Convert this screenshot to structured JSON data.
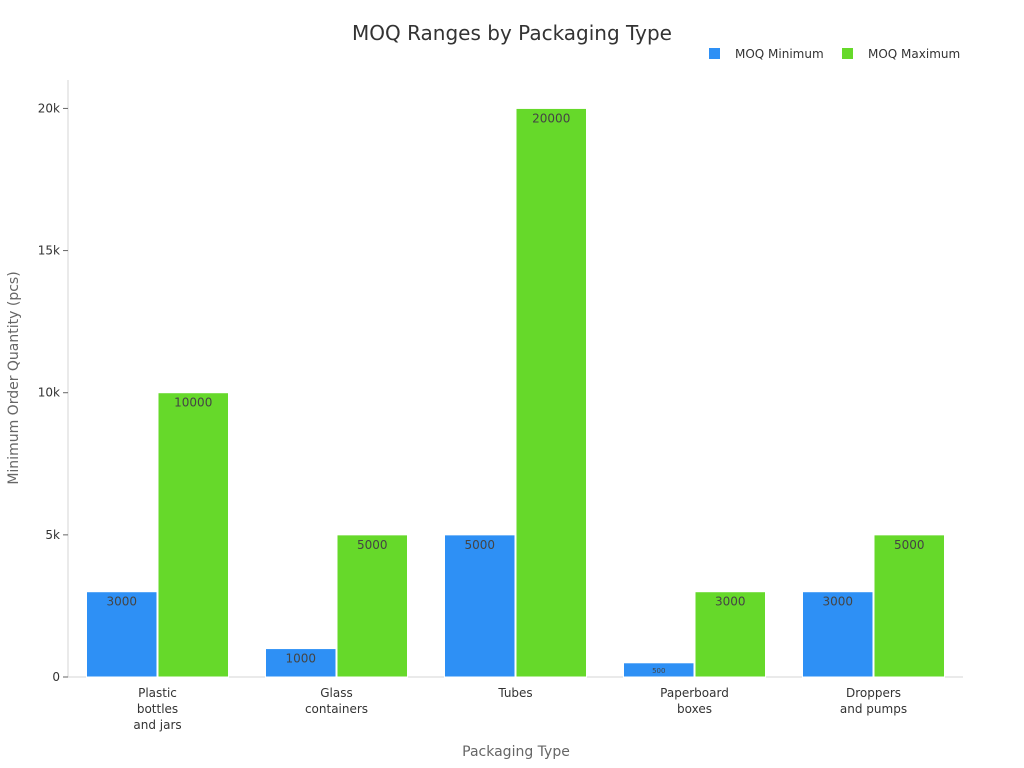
{
  "chart_data": {
    "type": "bar",
    "title": "MOQ Ranges by Packaging Type",
    "xlabel": "Packaging Type",
    "ylabel": "Minimum Order Quantity (pcs)",
    "categories": [
      [
        "Plastic",
        "bottles",
        "and jars"
      ],
      [
        "Glass",
        "containers"
      ],
      [
        "Tubes"
      ],
      [
        "Paperboard",
        "boxes"
      ],
      [
        "Droppers",
        "and pumps"
      ]
    ],
    "series": [
      {
        "name": "MOQ Minimum",
        "color": "#2e90f5",
        "values": [
          3000,
          1000,
          5000,
          500,
          3000
        ]
      },
      {
        "name": "MOQ Maximum",
        "color": "#66d92a",
        "values": [
          10000,
          5000,
          20000,
          3000,
          5000
        ]
      }
    ],
    "ylim": [
      0,
      21000
    ],
    "yticks": [
      0,
      5000,
      10000,
      15000,
      20000
    ],
    "ytick_labels": [
      "0",
      "5k",
      "10k",
      "15k",
      "20k"
    ],
    "grid": false,
    "legend_position": "top-right"
  }
}
